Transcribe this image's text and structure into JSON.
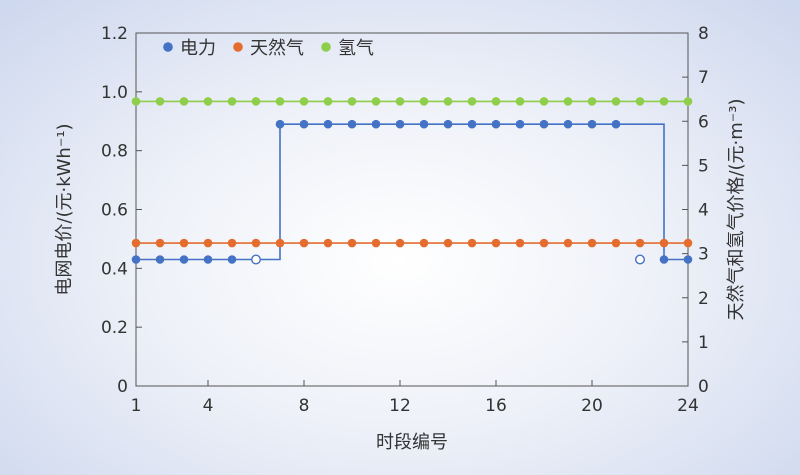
{
  "chart_data": {
    "type": "line",
    "xlabel": "时段编号",
    "ylabel_left": "电网电价/(元·kWh⁻¹)",
    "ylabel_right": "天然气和氢气价格/(元·m⁻³)",
    "xlim": [
      1,
      24
    ],
    "ylim_left": [
      0,
      1.2
    ],
    "ylim_right": [
      0,
      8
    ],
    "x_ticks": [
      1,
      4,
      8,
      12,
      16,
      20,
      24
    ],
    "y_left_ticks": [
      "0",
      "0.2",
      "0.4",
      "0.6",
      "0.8",
      "1.0",
      "1.2"
    ],
    "y_right_ticks": [
      "0",
      "1",
      "2",
      "3",
      "4",
      "5",
      "6",
      "7",
      "8"
    ],
    "legend_position": "top-left",
    "grid": false,
    "series": [
      {
        "name": "电力",
        "axis": "left",
        "color": "#4472c4",
        "step": true,
        "x": [
          1,
          2,
          3,
          4,
          5,
          6,
          7,
          8,
          9,
          10,
          11,
          12,
          13,
          14,
          15,
          16,
          17,
          18,
          19,
          20,
          21,
          22,
          23,
          24
        ],
        "values": [
          0.43,
          0.43,
          0.43,
          0.43,
          0.43,
          0.43,
          0.89,
          0.89,
          0.89,
          0.89,
          0.89,
          0.89,
          0.89,
          0.89,
          0.89,
          0.89,
          0.89,
          0.89,
          0.89,
          0.89,
          0.89,
          0.89,
          0.43,
          0.43
        ],
        "open_points": [
          {
            "x": 6,
            "y": 0.43
          },
          {
            "x": 22,
            "y": 0.43
          }
        ]
      },
      {
        "name": "天然气",
        "axis": "right",
        "color": "#e46c2e",
        "step": false,
        "x": [
          1,
          2,
          3,
          4,
          5,
          6,
          7,
          8,
          9,
          10,
          11,
          12,
          13,
          14,
          15,
          16,
          17,
          18,
          19,
          20,
          21,
          22,
          23,
          24
        ],
        "values": [
          3.24,
          3.24,
          3.24,
          3.24,
          3.24,
          3.24,
          3.24,
          3.24,
          3.24,
          3.24,
          3.24,
          3.24,
          3.24,
          3.24,
          3.24,
          3.24,
          3.24,
          3.24,
          3.24,
          3.24,
          3.24,
          3.24,
          3.24,
          3.24
        ]
      },
      {
        "name": "氢气",
        "axis": "right",
        "color": "#8fce4b",
        "step": false,
        "x": [
          1,
          2,
          3,
          4,
          5,
          6,
          7,
          8,
          9,
          10,
          11,
          12,
          13,
          14,
          15,
          16,
          17,
          18,
          19,
          20,
          21,
          22,
          23,
          24
        ],
        "values": [
          6.45,
          6.45,
          6.45,
          6.45,
          6.45,
          6.45,
          6.45,
          6.45,
          6.45,
          6.45,
          6.45,
          6.45,
          6.45,
          6.45,
          6.45,
          6.45,
          6.45,
          6.45,
          6.45,
          6.45,
          6.45,
          6.45,
          6.45,
          6.45
        ]
      }
    ]
  }
}
